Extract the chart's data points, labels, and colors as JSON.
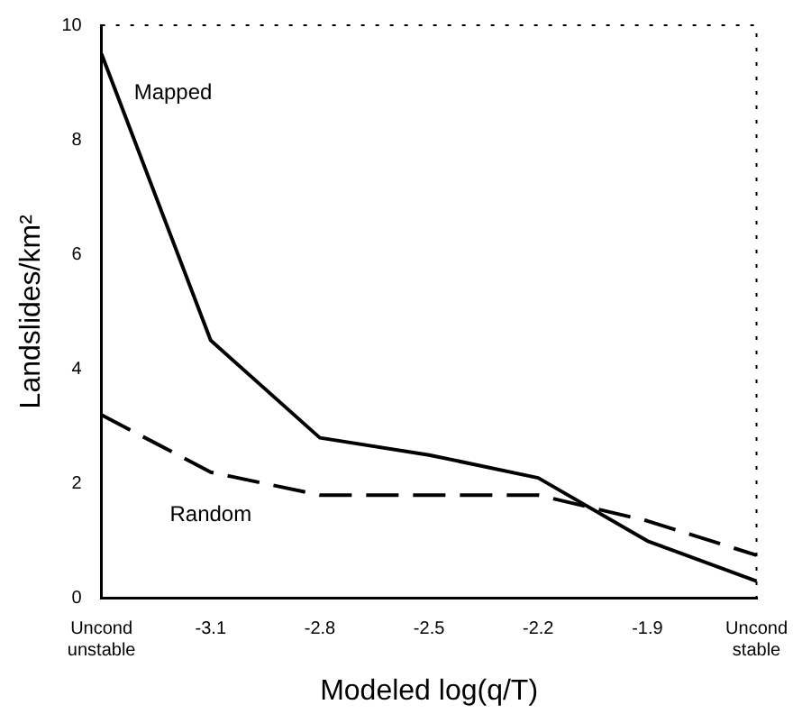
{
  "chart_data": {
    "type": "line",
    "xlabel": "Modeled log(q/T)",
    "ylabel": "Landslides/km²",
    "categories": [
      "Uncond unstable",
      "-3.1",
      "-2.8",
      "-2.5",
      "-2.2",
      "-1.9",
      "Uncond stable"
    ],
    "series": [
      {
        "name": "Mapped",
        "color": "#000000",
        "line_style": "solid",
        "values": [
          9.5,
          4.5,
          2.8,
          2.5,
          2.1,
          1.0,
          0.3
        ]
      },
      {
        "name": "Random",
        "color": "#000000",
        "line_style": "dashed",
        "values": [
          3.2,
          2.2,
          1.8,
          1.8,
          1.8,
          1.35,
          0.75
        ]
      }
    ],
    "ylim": [
      0,
      10
    ],
    "yticks": [
      0,
      2,
      4,
      6,
      8,
      10
    ],
    "grid": false,
    "legend": false,
    "marker": "none"
  }
}
